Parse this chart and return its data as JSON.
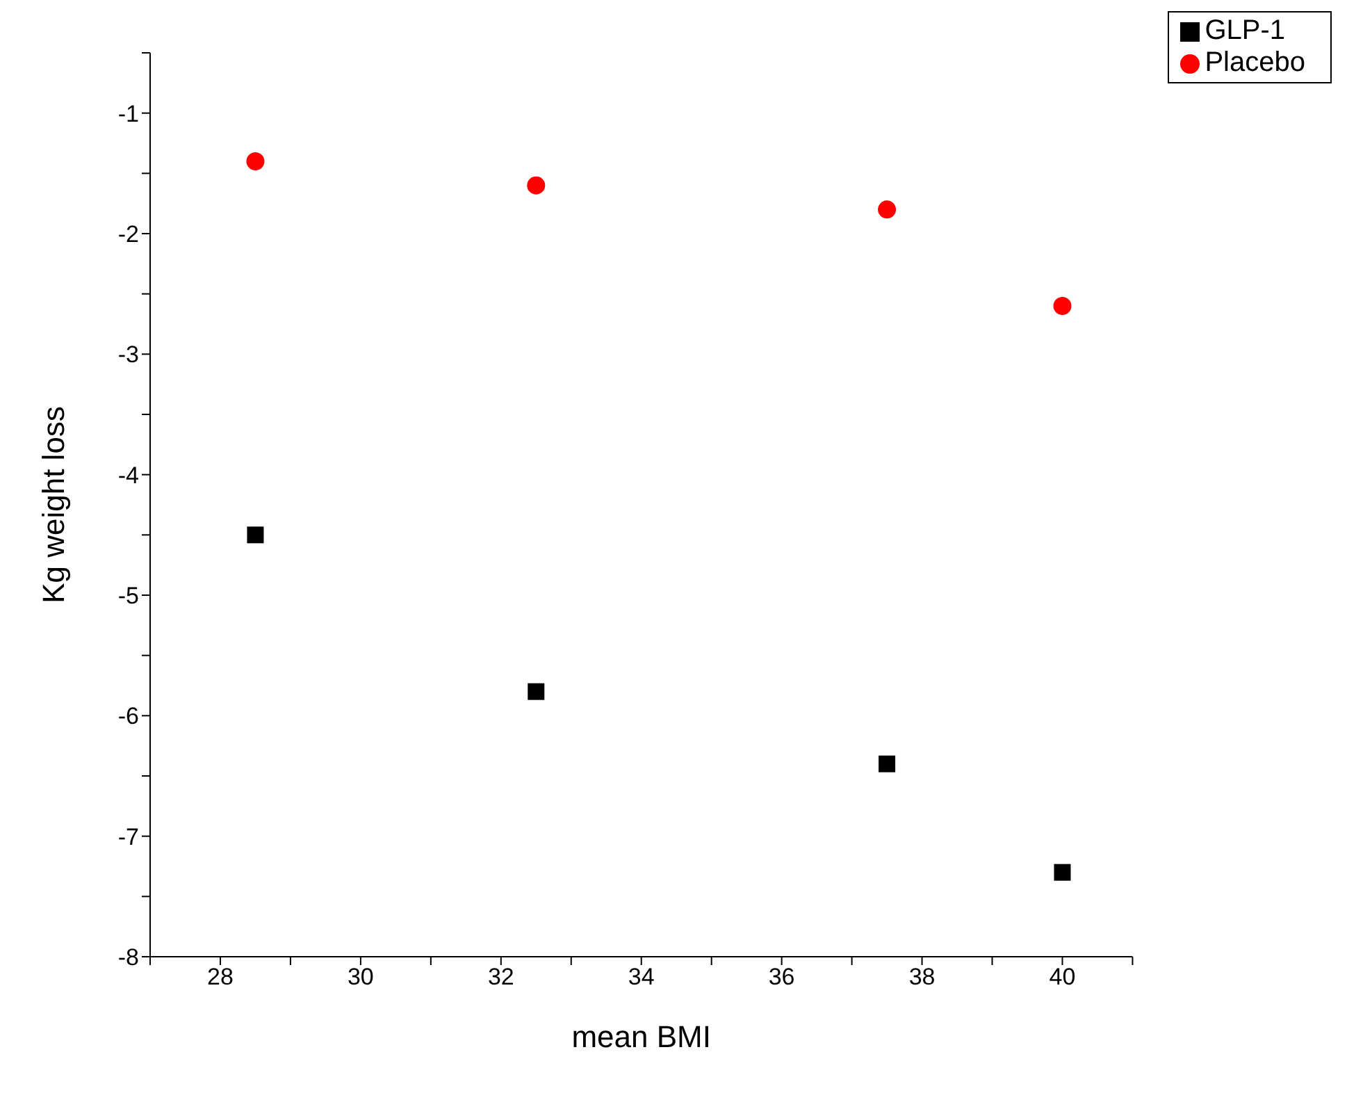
{
  "chart_data": {
    "type": "scatter",
    "xlabel": "mean BMI",
    "ylabel": "Kg weight loss",
    "xlim": [
      27,
      41
    ],
    "xticks": [
      {
        "value": 27,
        "label": null
      },
      28,
      {
        "value": 29,
        "label": null
      },
      30,
      {
        "value": 31,
        "label": null
      },
      32,
      {
        "value": 33,
        "label": null
      },
      34,
      {
        "value": 35,
        "label": null
      },
      36,
      {
        "value": 37,
        "label": null
      },
      38,
      {
        "value": 39,
        "label": null
      },
      40,
      {
        "value": 41,
        "label": null
      }
    ],
    "ylim": [
      -8,
      -0.5
    ],
    "yticks": [
      -8,
      {
        "value": -7.5,
        "label": null
      },
      -7,
      {
        "value": -6.5,
        "label": null
      },
      -6,
      {
        "value": -5.5,
        "label": null
      },
      -5,
      {
        "value": -4.5,
        "label": null
      },
      -4,
      {
        "value": -3.5,
        "label": null
      },
      -3,
      {
        "value": -2.5,
        "label": null
      },
      -2,
      {
        "value": -1.5,
        "label": null
      },
      -1,
      {
        "value": -0.5,
        "label": null
      }
    ],
    "x": [
      28.5,
      32.5,
      37.5,
      40
    ],
    "series": [
      {
        "name": "GLP-1",
        "color": "#000000",
        "marker": "square",
        "values": [
          -4.5,
          -5.8,
          -6.4,
          -7.3
        ]
      },
      {
        "name": "Placebo",
        "color": "#ff0000",
        "marker": "circle",
        "values": [
          -1.4,
          -1.6,
          -1.8,
          -2.6
        ]
      }
    ],
    "legend": "top right",
    "grid": false
  }
}
